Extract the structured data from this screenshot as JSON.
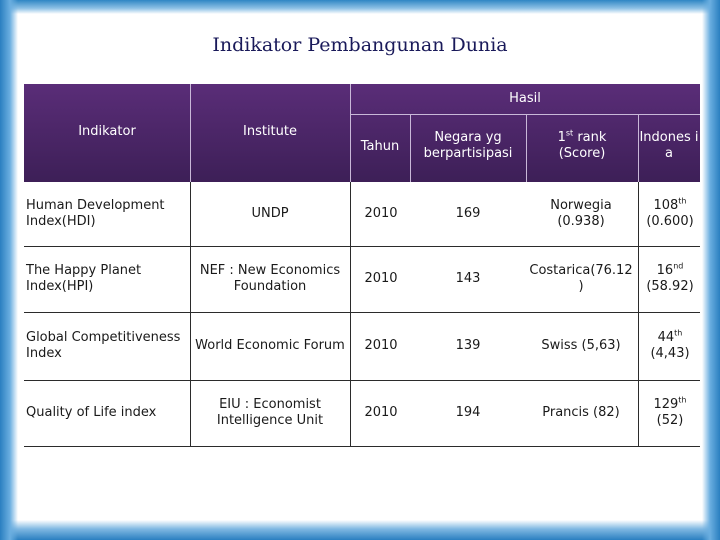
{
  "title": "Indikator  Pembangunan Dunia",
  "header": {
    "hasil": "Hasil",
    "indikator": "Indikator",
    "institute": "Institute",
    "tahun": "Tahun",
    "negara": "Negara yg berpartisipasi",
    "rank_num": "1",
    "rank_sup": "st",
    "rank_rest": " rank (Score)",
    "indonesia": "Indones ia"
  },
  "rows": [
    {
      "indikator": "Human Development Index(HDI)",
      "institute": "UNDP",
      "tahun": "2010",
      "negara": "169",
      "rank": "Norwegia (0.938)",
      "indo_num": "108",
      "indo_sup": "th",
      "indo_score": "(0.600)"
    },
    {
      "indikator": "The Happy Planet Index(HPI)",
      "institute": "NEF : New Economics Foundation",
      "tahun": "2010",
      "negara": "143",
      "rank": "Costarica(76.12 )",
      "indo_num": "16",
      "indo_sup": "nd",
      "indo_score": "(58.92)"
    },
    {
      "indikator": "Global Competitiveness Index",
      "institute": "World Economic Forum",
      "tahun": "2010",
      "negara": "139",
      "rank": "Swiss (5,63)",
      "indo_num": "44",
      "indo_sup": "th",
      "indo_score": "(4,43)"
    },
    {
      "indikator": "Quality of Life index",
      "institute": "EIU : Economist Intelligence Unit",
      "tahun": "2010",
      "negara": "194",
      "rank": "Prancis (82)",
      "indo_num": "129",
      "indo_sup": "th",
      "indo_score": "(52)"
    }
  ],
  "colors": {
    "header_bg": "#4a2566",
    "frame_blue": "#2a7fc0",
    "title_color": "#1a1a5a"
  }
}
